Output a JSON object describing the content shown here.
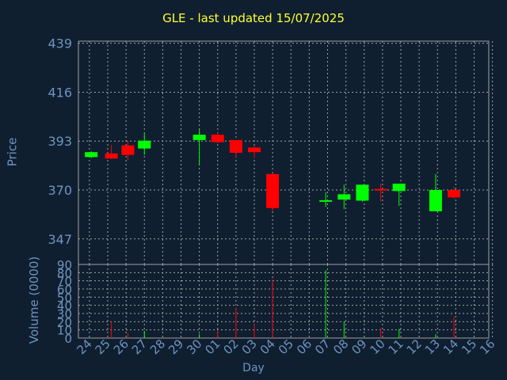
{
  "chart_data": {
    "type": "candlestick",
    "title": "GLE - last updated 15/07/2025",
    "ylabel": "Price",
    "vol_label": "Volume (0000)",
    "xlabel": "Day",
    "categories": [
      "24",
      "25",
      "26",
      "27",
      "28",
      "29",
      "30",
      "01",
      "02",
      "03",
      "04",
      "05",
      "06",
      "07",
      "08",
      "09",
      "10",
      "11",
      "12",
      "13",
      "14",
      "15",
      "16"
    ],
    "price_ticks": [
      347,
      370,
      393,
      416,
      439
    ],
    "price_range": [
      335,
      440
    ],
    "volume_ticks": [
      0,
      10,
      20,
      30,
      40,
      50,
      60,
      70,
      80,
      90
    ],
    "volume_range": [
      0,
      90
    ],
    "candles": [
      {
        "x": 24.1,
        "open": 385.5,
        "close": 387.8,
        "high": 388.2,
        "low": 385.0
      },
      {
        "x": 25.2,
        "open": 387.2,
        "close": 384.8,
        "high": 391.2,
        "low": 384.5
      },
      {
        "x": 26.1,
        "open": 391.0,
        "close": 386.5,
        "high": 393.0,
        "low": 384.0
      },
      {
        "x": 27.0,
        "open": 389.5,
        "close": 393.2,
        "high": 396.5,
        "low": 386.5
      },
      {
        "x": 30.0,
        "open": 393.5,
        "close": 396.0,
        "high": 398.5,
        "low": 382.0
      },
      {
        "x": 31.0,
        "open": 396.0,
        "close": 392.5,
        "high": 397.0,
        "low": 392.0
      },
      {
        "x": 32.0,
        "open": 393.5,
        "close": 387.5,
        "high": 393.5,
        "low": 385.5
      },
      {
        "x": 33.0,
        "open": 390.0,
        "close": 387.8,
        "high": 390.5,
        "low": 385.0
      },
      {
        "x": 34.0,
        "open": 377.5,
        "close": 361.5,
        "high": 378.0,
        "low": 360.0
      },
      {
        "x": 36.9,
        "open": 364.5,
        "close": 365.2,
        "high": 369.0,
        "low": 362.0
      },
      {
        "x": 37.9,
        "open": 365.5,
        "close": 368.0,
        "high": 372.5,
        "low": 361.0
      },
      {
        "x": 38.9,
        "open": 365.0,
        "close": 372.5,
        "high": 372.5,
        "low": 364.5
      },
      {
        "x": 39.9,
        "open": 370.5,
        "close": 369.8,
        "high": 373.0,
        "low": 364.5
      },
      {
        "x": 40.9,
        "open": 369.5,
        "close": 373.0,
        "high": 373.0,
        "low": 362.5
      },
      {
        "x": 42.9,
        "open": 360.0,
        "close": 370.0,
        "high": 377.5,
        "low": 360.0
      },
      {
        "x": 43.9,
        "open": 370.0,
        "close": 366.5,
        "high": 371.5,
        "low": 366.0
      }
    ],
    "volumes": [
      {
        "x": 25.2,
        "value": 20
      },
      {
        "x": 26.1,
        "value": 6
      },
      {
        "x": 27.0,
        "value": 9
      },
      {
        "x": 30.0,
        "value": 5
      },
      {
        "x": 31.0,
        "value": 9
      },
      {
        "x": 32.0,
        "value": 37
      },
      {
        "x": 33.0,
        "value": 17
      },
      {
        "x": 34.0,
        "value": 72
      },
      {
        "x": 36.9,
        "value": 83
      },
      {
        "x": 37.9,
        "value": 20
      },
      {
        "x": 39.9,
        "value": 12
      },
      {
        "x": 40.9,
        "value": 11
      },
      {
        "x": 42.9,
        "value": 5
      },
      {
        "x": 43.9,
        "value": 26
      }
    ],
    "up_color": "#00ff00",
    "down_color": "#ff0000",
    "grid": true,
    "grid_color": "#a0a0a0",
    "axis_color": "#6f93bf",
    "title_color": "#ffff33",
    "background": "#0f1f30"
  }
}
